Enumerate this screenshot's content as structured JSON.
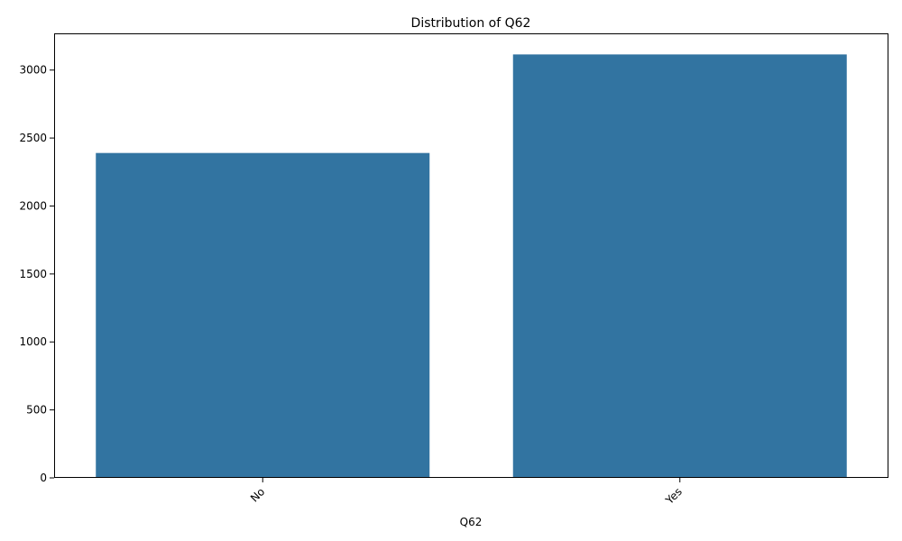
{
  "chart_data": {
    "type": "bar",
    "title": "Distribution of Q62",
    "xlabel": "Q62",
    "ylabel": "",
    "categories": [
      "No",
      "Yes"
    ],
    "values": [
      2390,
      3115
    ],
    "ylim": [
      0,
      3270
    ],
    "yticks": [
      0,
      500,
      1000,
      1500,
      2000,
      2500,
      3000
    ],
    "grid": false,
    "bar_color": "#3274a1"
  }
}
